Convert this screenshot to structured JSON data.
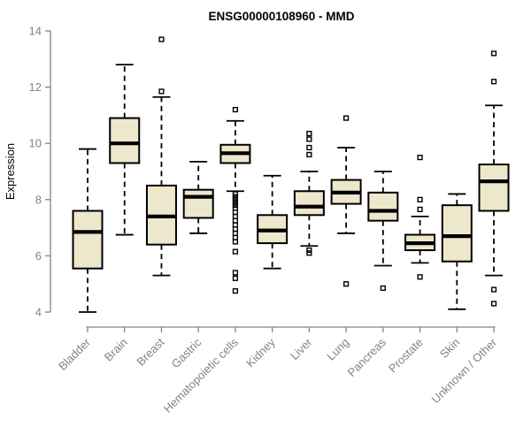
{
  "chart_data": {
    "type": "box",
    "title": "ENSG00000108960 - MMD",
    "xlabel": "",
    "ylabel": "Expression",
    "ylim": [
      4,
      14
    ],
    "yticks": [
      4,
      6,
      8,
      10,
      12,
      14
    ],
    "layout": {
      "grid": false,
      "legend": "none",
      "x_label_rotation_deg": 45
    },
    "colors": {
      "box_fill": "#EDE7CC",
      "box_border": "#000000",
      "median": "#000000",
      "whisker": "#000000",
      "outlier": "#000000",
      "axis_text": "#838383",
      "title": "#000000"
    },
    "categories": [
      "Bladder",
      "Brain",
      "Breast",
      "Gastric",
      "Hematopoietic cells",
      "Kidney",
      "Liver",
      "Lung",
      "Pancreas",
      "Prostate",
      "Skin",
      "Unknown / Other"
    ],
    "series": [
      {
        "name": "Bladder",
        "whisker_low": 4.0,
        "q1": 5.55,
        "median": 6.85,
        "q3": 7.6,
        "whisker_high": 9.8,
        "outliers": []
      },
      {
        "name": "Brain",
        "whisker_low": 6.75,
        "q1": 9.3,
        "median": 10.0,
        "q3": 10.9,
        "whisker_high": 12.8,
        "outliers": []
      },
      {
        "name": "Breast",
        "whisker_low": 5.3,
        "q1": 6.4,
        "median": 7.4,
        "q3": 8.5,
        "whisker_high": 11.65,
        "outliers": [
          13.7,
          11.85
        ]
      },
      {
        "name": "Gastric",
        "whisker_low": 6.8,
        "q1": 7.35,
        "median": 8.1,
        "q3": 8.35,
        "whisker_high": 9.35,
        "outliers": []
      },
      {
        "name": "Hematopoietic cells",
        "whisker_low": 8.3,
        "q1": 9.3,
        "median": 9.65,
        "q3": 9.95,
        "whisker_high": 10.8,
        "outliers": [
          11.2,
          8.2,
          8.1,
          8.0,
          7.9,
          7.8,
          7.7,
          7.55,
          7.4,
          7.25,
          7.1,
          6.95,
          6.8,
          6.65,
          6.5,
          6.15,
          5.4,
          5.2,
          4.75
        ]
      },
      {
        "name": "Kidney",
        "whisker_low": 5.55,
        "q1": 6.45,
        "median": 6.9,
        "q3": 7.45,
        "whisker_high": 8.85,
        "outliers": []
      },
      {
        "name": "Liver",
        "whisker_low": 6.35,
        "q1": 7.45,
        "median": 7.75,
        "q3": 8.3,
        "whisker_high": 9.0,
        "outliers": [
          10.35,
          10.15,
          9.85,
          9.6,
          6.2,
          6.1
        ]
      },
      {
        "name": "Lung",
        "whisker_low": 6.8,
        "q1": 7.85,
        "median": 8.25,
        "q3": 8.7,
        "whisker_high": 9.85,
        "outliers": [
          10.9,
          5.0
        ]
      },
      {
        "name": "Pancreas",
        "whisker_low": 5.65,
        "q1": 7.25,
        "median": 7.6,
        "q3": 8.25,
        "whisker_high": 9.0,
        "outliers": [
          4.85
        ]
      },
      {
        "name": "Prostate",
        "whisker_low": 5.75,
        "q1": 6.2,
        "median": 6.45,
        "q3": 6.75,
        "whisker_high": 7.4,
        "outliers": [
          9.5,
          8.0,
          7.65,
          5.25
        ]
      },
      {
        "name": "Skin",
        "whisker_low": 4.1,
        "q1": 5.8,
        "median": 6.7,
        "q3": 7.8,
        "whisker_high": 8.2,
        "outliers": []
      },
      {
        "name": "Unknown / Other",
        "whisker_low": 5.3,
        "q1": 7.6,
        "median": 8.65,
        "q3": 9.25,
        "whisker_high": 11.35,
        "outliers": [
          13.2,
          12.2,
          4.8,
          4.3
        ]
      }
    ]
  }
}
